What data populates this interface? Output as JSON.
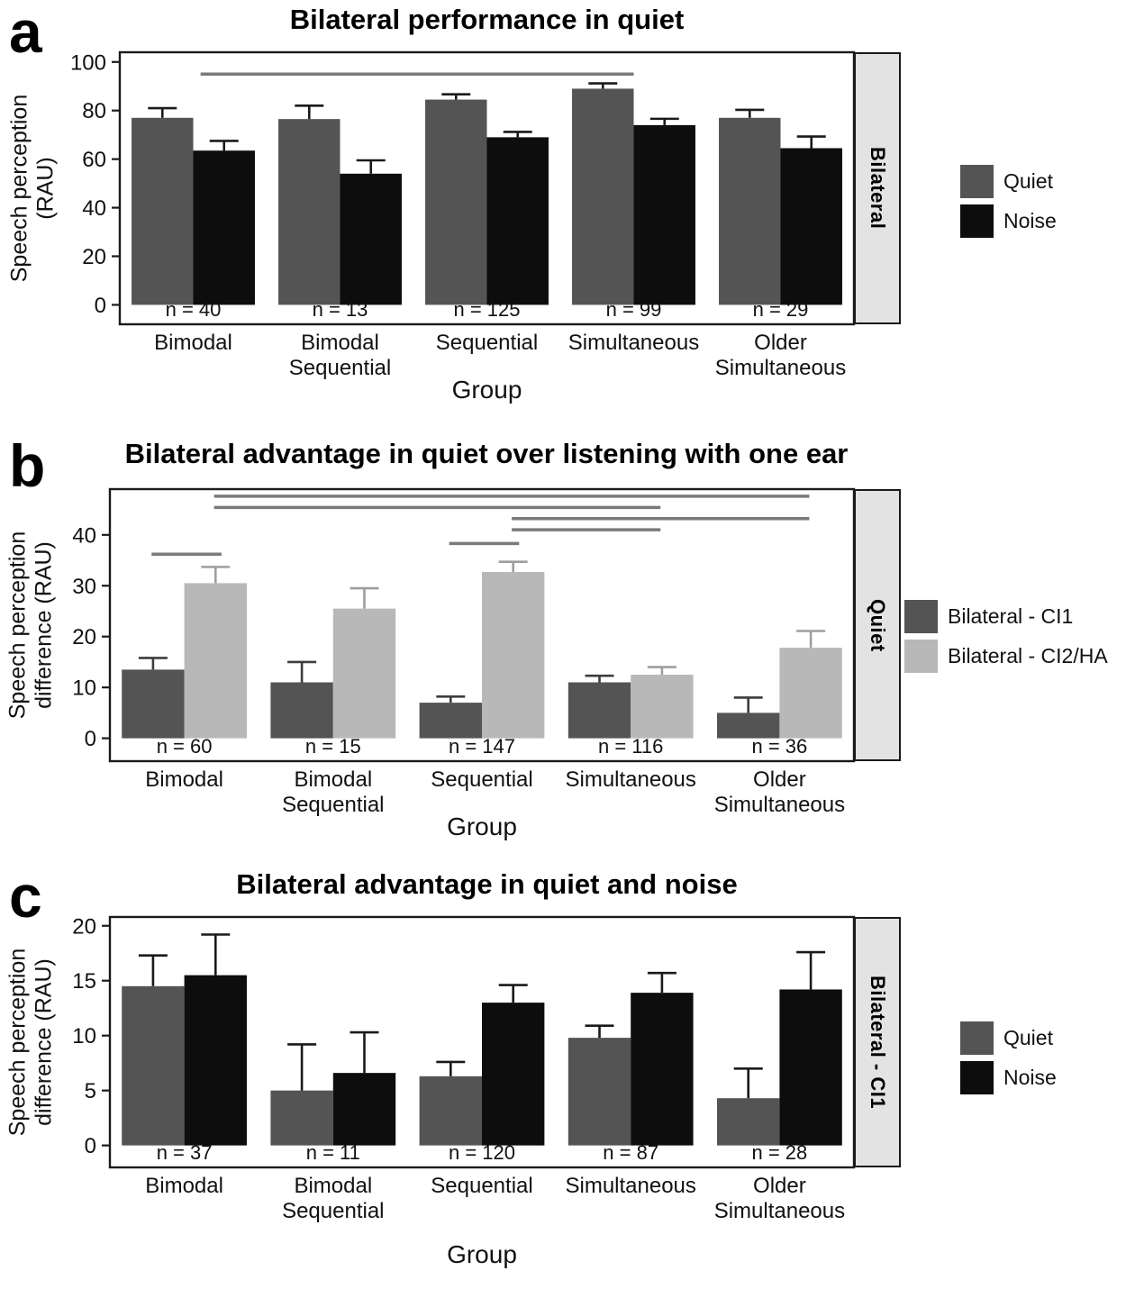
{
  "chart_data": [
    {
      "type": "bar",
      "letter": "a",
      "title": "Bilateral performance in quiet",
      "ylabel": "Speech perception\n(RAU)",
      "xlabel": "Group",
      "strip_label": "Bilateral",
      "legend_position": "right",
      "grid": false,
      "ylim": [
        -8,
        104
      ],
      "yticks": [
        0,
        20,
        40,
        60,
        80,
        100
      ],
      "categories": [
        "Bimodal",
        "Bimodal\nSequential",
        "Sequential",
        "Simultaneous",
        "Older\nSimultaneous"
      ],
      "n_labels": [
        "n = 40",
        "n = 13",
        "n = 125",
        "n = 99",
        "n = 29"
      ],
      "series": [
        {
          "name": "Quiet",
          "color": "#545454",
          "error_color": "#1a1a1a",
          "values": [
            77,
            76.5,
            84.5,
            89,
            77
          ],
          "errors": [
            4,
            5.5,
            2.2,
            2.2,
            3.3
          ]
        },
        {
          "name": "Noise",
          "color": "#0d0d0d",
          "error_color": "#1a1a1a",
          "values": [
            63.5,
            54,
            69,
            74,
            64.5
          ],
          "errors": [
            4,
            5.5,
            2.2,
            2.6,
            4.8
          ]
        }
      ],
      "sig_line_color": "#7a7a7a",
      "sig_lines": [
        {
          "y": 95,
          "x1": 0.05,
          "x2": 3.0
        }
      ]
    },
    {
      "type": "bar",
      "letter": "b",
      "title": "Bilateral advantage in quiet over listening with one ear",
      "ylabel": "Speech perception\ndifference (RAU)",
      "xlabel": "Group",
      "strip_label": "Quiet",
      "legend_position": "right",
      "grid": false,
      "ylim": [
        -4.5,
        49
      ],
      "yticks": [
        0,
        10,
        20,
        30,
        40
      ],
      "categories": [
        "Bimodal",
        "Bimodal\nSequential",
        "Sequential",
        "Simultaneous",
        "Older\nSimultaneous"
      ],
      "n_labels": [
        "n = 60",
        "n = 15",
        "n = 147",
        "n = 116",
        "n = 36"
      ],
      "series": [
        {
          "name": "Bilateral - CI1",
          "color": "#545454",
          "error_color": "#3d3d3d",
          "values": [
            13.5,
            11,
            7,
            11,
            5
          ],
          "errors": [
            2.3,
            4,
            1.2,
            1.3,
            3
          ]
        },
        {
          "name": "Bilateral - CI2/HA",
          "color": "#b8b8b8",
          "error_color": "#9e9e9e",
          "values": [
            30.5,
            25.5,
            32.7,
            12.5,
            17.8
          ],
          "errors": [
            3.2,
            4,
            2,
            1.5,
            3.3
          ]
        }
      ],
      "sig_line_color": "#7a7a7a",
      "sig_lines": [
        {
          "y": 47.6,
          "x1": 0.2,
          "x2": 4.2
        },
        {
          "y": 45.4,
          "x1": 0.2,
          "x2": 3.2
        },
        {
          "y": 43.2,
          "x1": 2.2,
          "x2": 4.2
        },
        {
          "y": 41.0,
          "x1": 2.2,
          "x2": 3.2
        },
        {
          "y": 38.3,
          "x1": 1.78,
          "x2": 2.25
        },
        {
          "y": 36.2,
          "x1": -0.22,
          "x2": 0.25
        }
      ]
    },
    {
      "type": "bar",
      "letter": "c",
      "title": "Bilateral advantage in quiet and noise",
      "ylabel": "Speech perception\ndifference (RAU)",
      "xlabel": "Group",
      "strip_label": "Bilateral - CI1",
      "legend_position": "right",
      "grid": false,
      "ylim": [
        -2,
        20.8
      ],
      "yticks": [
        0,
        5,
        10,
        15,
        20
      ],
      "categories": [
        "Bimodal",
        "Bimodal\nSequential",
        "Sequential",
        "Simultaneous",
        "Older\nSimultaneous"
      ],
      "n_labels": [
        "n = 37",
        "n = 11",
        "n = 120",
        "n = 87",
        "n = 28"
      ],
      "series": [
        {
          "name": "Quiet",
          "color": "#545454",
          "error_color": "#1a1a1a",
          "values": [
            14.5,
            5,
            6.3,
            9.8,
            4.3
          ],
          "errors": [
            2.8,
            4.2,
            1.3,
            1.1,
            2.7
          ]
        },
        {
          "name": "Noise",
          "color": "#0d0d0d",
          "error_color": "#1a1a1a",
          "values": [
            15.5,
            6.6,
            13,
            13.9,
            14.2
          ],
          "errors": [
            3.7,
            3.7,
            1.6,
            1.8,
            3.4
          ]
        }
      ],
      "sig_line_color": "#7a7a7a",
      "sig_lines": []
    }
  ]
}
